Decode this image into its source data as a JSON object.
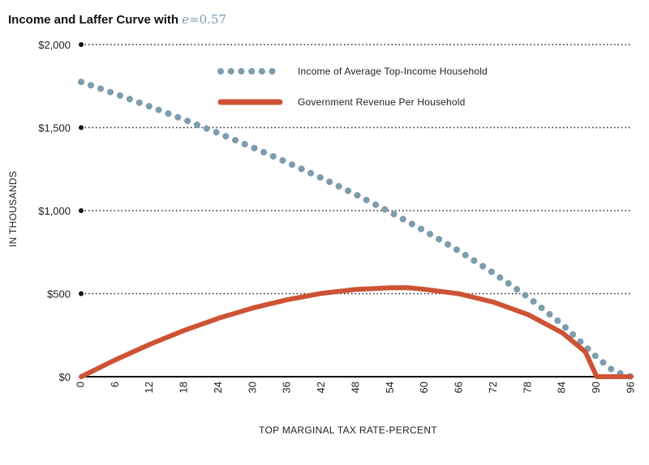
{
  "chart_data": {
    "type": "line",
    "title_prefix": "Income and Laffer Curve with ",
    "title_param_symbol": "e",
    "title_param_value": "=0.57",
    "xlabel": "TOP MARGINAL TAX RATE-PERCENT",
    "ylabel": "IN THOUSANDS",
    "xlim": [
      0,
      96
    ],
    "ylim": [
      0,
      2000
    ],
    "x_tick_labels": [
      "0",
      "6",
      "12",
      "18",
      "24",
      "30",
      "36",
      "42",
      "48",
      "54",
      "60",
      "66",
      "72",
      "78",
      "84",
      "90",
      "96"
    ],
    "y_tick_labels": [
      "$0",
      "$500",
      "$1,000",
      "$1,500",
      "$2,000"
    ],
    "y_tick_values": [
      0,
      500,
      1000,
      1500,
      2000
    ],
    "grid": true,
    "legend_position": "top-center",
    "elasticity": 0.57,
    "series": [
      {
        "name": "Income of Average Top-Income Household",
        "style": "dotted",
        "color": "#7d9cad",
        "x": [
          0,
          6,
          12,
          18,
          24,
          30,
          36,
          42,
          48,
          54,
          60,
          66,
          72,
          78,
          84,
          90,
          93,
          96
        ],
        "y": [
          1775,
          1703,
          1627,
          1548,
          1466,
          1380,
          1290,
          1196,
          1096,
          990,
          877,
          756,
          624,
          479,
          314,
          117,
          32,
          0
        ]
      },
      {
        "name": "Government Revenue Per Household",
        "style": "solid",
        "color": "#cd5334",
        "x": [
          0,
          6,
          12,
          18,
          24,
          30,
          36,
          42,
          48,
          54,
          57,
          60,
          66,
          72,
          78,
          84,
          88,
          90,
          93,
          96
        ],
        "y": [
          0,
          102,
          195,
          279,
          352,
          414,
          464,
          502,
          526,
          535,
          536,
          526,
          499,
          449,
          374,
          264,
          150,
          0,
          0,
          0
        ]
      }
    ]
  }
}
